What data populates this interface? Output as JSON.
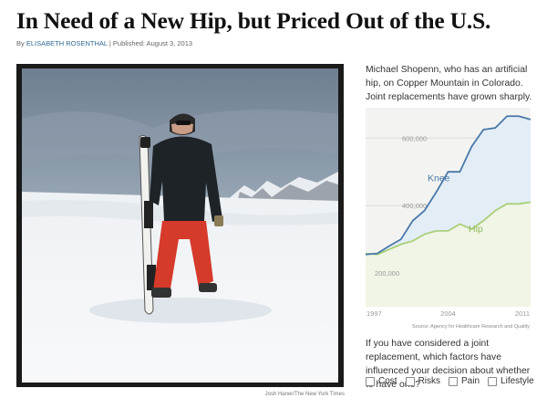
{
  "article": {
    "headline": "In Need of a New Hip, but Priced Out of the U.S.",
    "byline_prefix": "By",
    "author": "ELISABETH ROSENTHAL",
    "separator": "|",
    "published": "Published: August 3, 2013"
  },
  "photo": {
    "credit": "Josh Haner/The New York Times"
  },
  "caption": "Michael Shopenn, who has an artificial hip, on Copper Mountain in Colorado. Joint replacements have grown sharply.",
  "chart_data": {
    "type": "area",
    "x": [
      1997,
      1998,
      1999,
      2000,
      2001,
      2002,
      2003,
      2004,
      2005,
      2006,
      2007,
      2008,
      2009,
      2010,
      2011
    ],
    "series": [
      {
        "name": "Knee",
        "values": [
          255000,
          258000,
          280000,
          300000,
          355000,
          385000,
          440000,
          500000,
          500000,
          575000,
          625000,
          630000,
          665000,
          665000,
          655000
        ],
        "color": "#4a78a8"
      },
      {
        "name": "Hip",
        "values": [
          258000,
          255000,
          270000,
          285000,
          295000,
          315000,
          325000,
          325000,
          345000,
          330000,
          355000,
          385000,
          405000,
          405000,
          410000
        ],
        "color": "#a9cf7a"
      }
    ],
    "xticks": [
      "1997",
      "2004",
      "2011"
    ],
    "yticks": [
      {
        "value": 200000,
        "label": "200,000"
      },
      {
        "value": 400000,
        "label": "400,000"
      },
      {
        "value": 600000,
        "label": "600,000"
      }
    ],
    "ylim": [
      100000,
      690000
    ],
    "source": "Source: Agency for Healthcare Research and Quality"
  },
  "poll": {
    "question": "If you have considered a joint replacement, which factors have influenced your decision about whether to have one?",
    "options": [
      "Cost",
      "Risks",
      "Pain",
      "Lifestyle"
    ]
  }
}
